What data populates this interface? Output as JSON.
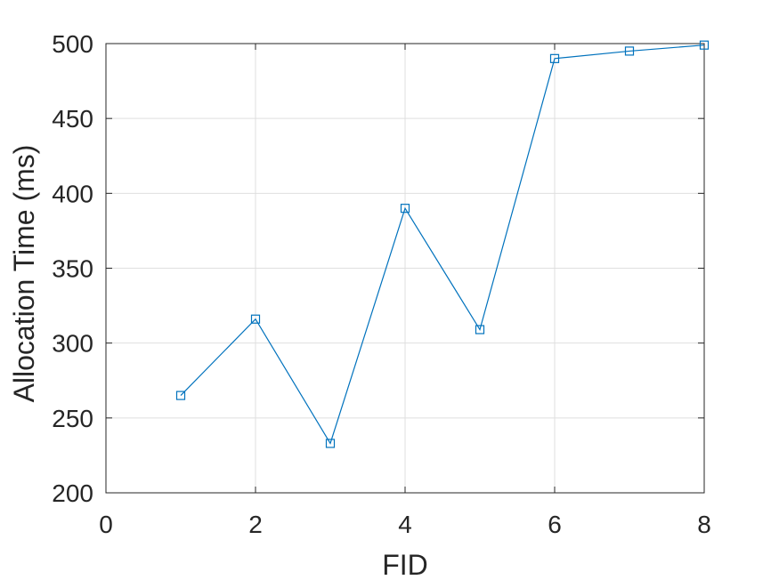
{
  "chart_data": {
    "type": "line",
    "title": "",
    "xlabel": "FID",
    "ylabel": "Allocation Time (ms)",
    "xlim": [
      0,
      8
    ],
    "ylim": [
      200,
      500
    ],
    "xticks": [
      0,
      2,
      4,
      6,
      8
    ],
    "yticks": [
      200,
      250,
      300,
      350,
      400,
      450,
      500
    ],
    "xtick_labels": [
      "0",
      "2",
      "4",
      "6",
      "8"
    ],
    "ytick_labels": [
      "200",
      "250",
      "300",
      "350",
      "400",
      "450",
      "500"
    ],
    "grid": true,
    "series": [
      {
        "x": [
          1,
          2,
          3,
          4,
          5,
          6,
          7,
          8
        ],
        "values": [
          265,
          316,
          233,
          390,
          309,
          490,
          495,
          499
        ],
        "marker": "square",
        "color": "#0072BD"
      }
    ]
  }
}
